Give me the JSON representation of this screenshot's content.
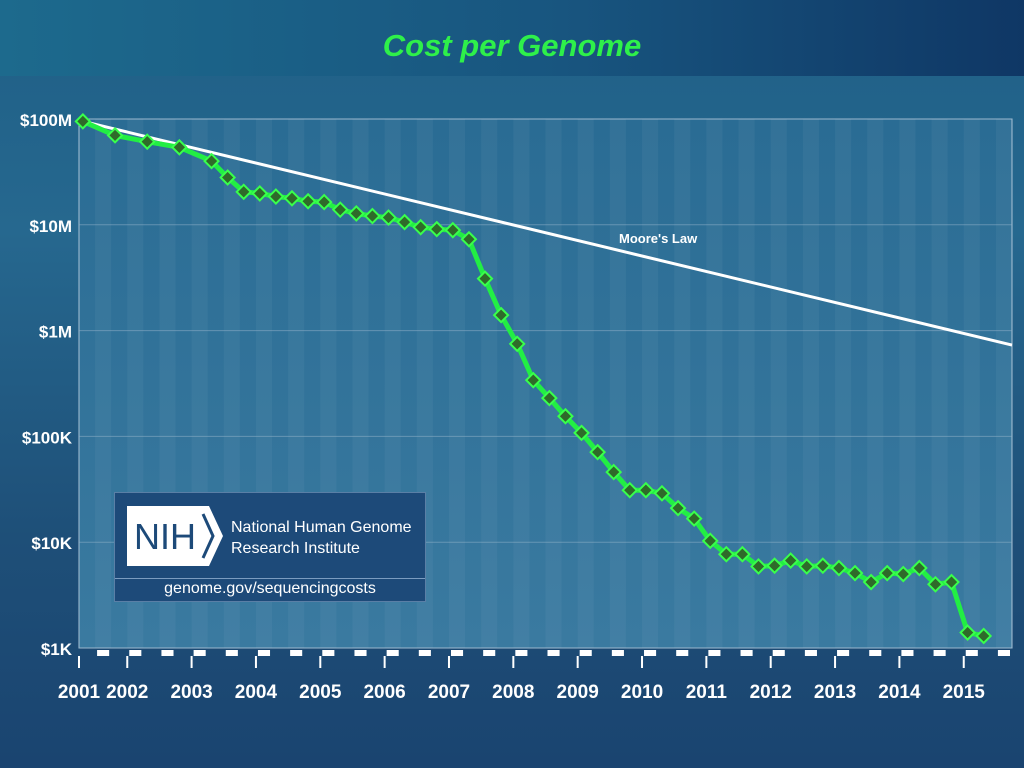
{
  "title": "Cost per Genome",
  "colors": {
    "title": "#2ef04a",
    "cost_line": "#22ee44",
    "marker_fill": "#2f6a2a",
    "marker_stroke": "#39ff4c",
    "moore_line": "#ffffff",
    "plot_bg": "#2c6690",
    "grid": "#8fb0c8"
  },
  "watermark": {
    "logo_text": "NIH",
    "name_line1": "National Human Genome",
    "name_line2": "Research Institute",
    "url": "genome.gov/sequencingcosts"
  },
  "chart_data": {
    "type": "line",
    "title": "Cost per Genome",
    "xlabel": "",
    "ylabel": "",
    "y_scale": "log",
    "ylim": [
      1000,
      100000000
    ],
    "xlim": [
      2001.0,
      2015.5
    ],
    "y_ticks": [
      {
        "value": 100000000,
        "label": "$100M"
      },
      {
        "value": 10000000,
        "label": "$10M"
      },
      {
        "value": 1000000,
        "label": "$1M"
      },
      {
        "value": 100000,
        "label": "$100K"
      },
      {
        "value": 10000,
        "label": "$10K"
      },
      {
        "value": 1000,
        "label": "$1K"
      }
    ],
    "x_ticks": [
      {
        "value": 2001.0,
        "label": "2001"
      },
      {
        "value": 2001.75,
        "label": "2002"
      },
      {
        "value": 2002.75,
        "label": "2003"
      },
      {
        "value": 2003.75,
        "label": "2004"
      },
      {
        "value": 2004.75,
        "label": "2005"
      },
      {
        "value": 2005.75,
        "label": "2006"
      },
      {
        "value": 2006.75,
        "label": "2007"
      },
      {
        "value": 2007.75,
        "label": "2008"
      },
      {
        "value": 2008.75,
        "label": "2009"
      },
      {
        "value": 2009.75,
        "label": "2010"
      },
      {
        "value": 2010.75,
        "label": "2011"
      },
      {
        "value": 2011.75,
        "label": "2012"
      },
      {
        "value": 2012.75,
        "label": "2013"
      },
      {
        "value": 2013.75,
        "label": "2014"
      },
      {
        "value": 2014.75,
        "label": "2015"
      }
    ],
    "grid": true,
    "legend": "none",
    "series": [
      {
        "name": "",
        "marker": "diamond",
        "points": [
          [
            2001.06,
            95000000
          ],
          [
            2001.56,
            70000000
          ],
          [
            2002.06,
            61000000
          ],
          [
            2002.56,
            54000000
          ],
          [
            2003.06,
            40000000
          ],
          [
            2003.31,
            28000000
          ],
          [
            2003.56,
            20500000
          ],
          [
            2003.81,
            19800000
          ],
          [
            2004.06,
            18500000
          ],
          [
            2004.31,
            17800000
          ],
          [
            2004.56,
            16700000
          ],
          [
            2004.81,
            16400000
          ],
          [
            2005.06,
            13900000
          ],
          [
            2005.31,
            12800000
          ],
          [
            2005.56,
            12100000
          ],
          [
            2005.81,
            11700000
          ],
          [
            2006.06,
            10600000
          ],
          [
            2006.31,
            9500000
          ],
          [
            2006.56,
            9100000
          ],
          [
            2006.81,
            8900000
          ],
          [
            2007.06,
            7300000
          ],
          [
            2007.31,
            3100000
          ],
          [
            2007.56,
            1400000
          ],
          [
            2007.81,
            750000
          ],
          [
            2008.06,
            340000
          ],
          [
            2008.31,
            230000
          ],
          [
            2008.56,
            155000
          ],
          [
            2008.81,
            108000
          ],
          [
            2009.06,
            71000
          ],
          [
            2009.31,
            46000
          ],
          [
            2009.56,
            31000
          ],
          [
            2009.81,
            31000
          ],
          [
            2010.06,
            29000
          ],
          [
            2010.31,
            21000
          ],
          [
            2010.56,
            16700
          ],
          [
            2010.81,
            10300
          ],
          [
            2011.06,
            7700
          ],
          [
            2011.31,
            7700
          ],
          [
            2011.56,
            5900
          ],
          [
            2011.81,
            6000
          ],
          [
            2012.06,
            6700
          ],
          [
            2012.31,
            5900
          ],
          [
            2012.56,
            6000
          ],
          [
            2012.81,
            5700
          ],
          [
            2013.06,
            5100
          ],
          [
            2013.31,
            4200
          ],
          [
            2013.56,
            5100
          ],
          [
            2013.81,
            5000
          ],
          [
            2014.06,
            5700
          ],
          [
            2014.31,
            4000
          ],
          [
            2014.56,
            4200
          ],
          [
            2014.81,
            1400
          ],
          [
            2015.06,
            1300
          ]
        ]
      },
      {
        "name": "Moore's Law",
        "marker": "none",
        "points": [
          [
            2001.06,
            95000000
          ],
          [
            2015.5,
            730000
          ]
        ]
      }
    ],
    "annotations": [
      {
        "text": "Moore's Law",
        "x": 2010.0,
        "y": 5900000
      }
    ]
  }
}
